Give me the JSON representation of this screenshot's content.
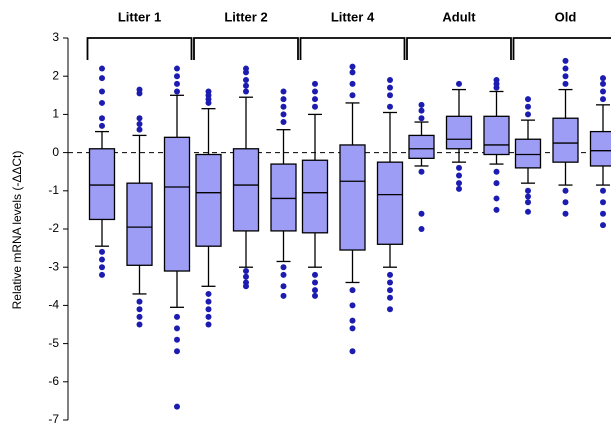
{
  "chart_data": {
    "type": "box",
    "ylabel": "Relative mRNA levels (-ΔΔCt)",
    "ylim": [
      -7,
      3
    ],
    "yticks": [
      -7,
      -6,
      -5,
      -4,
      -3,
      -2,
      -1,
      0,
      1,
      2,
      3
    ],
    "reference_line": 0,
    "box_color": "#9d9df5",
    "flier_color": "#1c1cb0",
    "groups": [
      {
        "name": "Litter 1",
        "boxes": [
          {
            "whislo": -2.45,
            "q1": -1.75,
            "med": -0.85,
            "q3": 0.1,
            "whishi": 0.55,
            "fliers": [
              2.2,
              1.95,
              1.6,
              1.3,
              0.9,
              0.7,
              -2.6,
              -2.8,
              -3.0,
              -3.2
            ]
          },
          {
            "whislo": -3.7,
            "q1": -2.95,
            "med": -1.95,
            "q3": -0.8,
            "whishi": 0.45,
            "fliers": [
              1.65,
              1.55,
              0.9,
              0.75,
              0.6,
              -3.9,
              -4.1,
              -4.3,
              -4.5
            ]
          },
          {
            "whislo": -4.05,
            "q1": -3.1,
            "med": -0.9,
            "q3": 0.4,
            "whishi": 1.5,
            "fliers": [
              2.2,
              2.0,
              1.8,
              1.6,
              -4.3,
              -4.6,
              -4.9,
              -5.2,
              -6.65
            ]
          }
        ]
      },
      {
        "name": "Litter 2",
        "boxes": [
          {
            "whislo": -3.5,
            "q1": -2.45,
            "med": -1.05,
            "q3": -0.05,
            "whishi": 1.15,
            "fliers": [
              1.6,
              1.5,
              1.4,
              1.3,
              -3.7,
              -3.9,
              -4.1,
              -4.3,
              -4.5
            ]
          },
          {
            "whislo": -3.0,
            "q1": -2.05,
            "med": -0.85,
            "q3": 0.1,
            "whishi": 1.45,
            "fliers": [
              2.2,
              2.1,
              1.9,
              1.75,
              1.6,
              -3.1,
              -3.25,
              -3.4,
              -3.5
            ]
          },
          {
            "whislo": -2.85,
            "q1": -2.05,
            "med": -1.2,
            "q3": -0.3,
            "whishi": 0.6,
            "fliers": [
              1.6,
              1.4,
              1.2,
              1.0,
              0.8,
              -3.0,
              -3.2,
              -3.5,
              -3.75
            ]
          }
        ]
      },
      {
        "name": "Litter 4",
        "boxes": [
          {
            "whislo": -3.0,
            "q1": -2.1,
            "med": -1.05,
            "q3": -0.2,
            "whishi": 1.0,
            "fliers": [
              1.8,
              1.6,
              1.4,
              1.2,
              -3.2,
              -3.4,
              -3.6,
              -3.75
            ]
          },
          {
            "whislo": -3.4,
            "q1": -2.55,
            "med": -0.75,
            "q3": 0.2,
            "whishi": 1.3,
            "fliers": [
              2.25,
              2.1,
              1.8,
              1.5,
              -3.6,
              -4.0,
              -4.4,
              -4.6,
              -5.2
            ]
          },
          {
            "whislo": -3.0,
            "q1": -2.4,
            "med": -1.1,
            "q3": -0.25,
            "whishi": 1.05,
            "fliers": [
              1.9,
              1.7,
              1.5,
              1.2,
              -3.2,
              -3.4,
              -3.6,
              -3.8,
              -4.1
            ]
          }
        ]
      },
      {
        "name": "Adult",
        "boxes": [
          {
            "whislo": -0.35,
            "q1": -0.15,
            "med": 0.1,
            "q3": 0.45,
            "whishi": 0.8,
            "fliers": [
              1.25,
              1.1,
              0.9,
              -0.5,
              -1.6,
              -2.0
            ]
          },
          {
            "whislo": -0.25,
            "q1": 0.1,
            "med": 0.35,
            "q3": 0.95,
            "whishi": 1.65,
            "fliers": [
              1.8,
              -0.4,
              -0.6,
              -0.8,
              -0.95
            ]
          },
          {
            "whislo": -0.3,
            "q1": -0.05,
            "med": 0.2,
            "q3": 0.95,
            "whishi": 1.6,
            "fliers": [
              1.9,
              1.8,
              1.7,
              -0.5,
              -0.8,
              -1.2,
              -1.5
            ]
          }
        ]
      },
      {
        "name": "Old",
        "boxes": [
          {
            "whislo": -0.8,
            "q1": -0.4,
            "med": -0.05,
            "q3": 0.35,
            "whishi": 0.85,
            "fliers": [
              1.4,
              1.2,
              1.0,
              -1.0,
              -1.15,
              -1.3,
              -1.55
            ]
          },
          {
            "whislo": -0.85,
            "q1": -0.25,
            "med": 0.25,
            "q3": 0.9,
            "whishi": 1.65,
            "fliers": [
              2.4,
              2.2,
              2.0,
              1.8,
              -1.0,
              -1.3,
              -1.6
            ]
          },
          {
            "whislo": -0.85,
            "q1": -0.35,
            "med": 0.05,
            "q3": 0.55,
            "whishi": 1.25,
            "fliers": [
              1.95,
              1.8,
              1.6,
              1.4,
              -1.0,
              -1.3,
              -1.6,
              -1.9
            ]
          }
        ]
      }
    ]
  }
}
